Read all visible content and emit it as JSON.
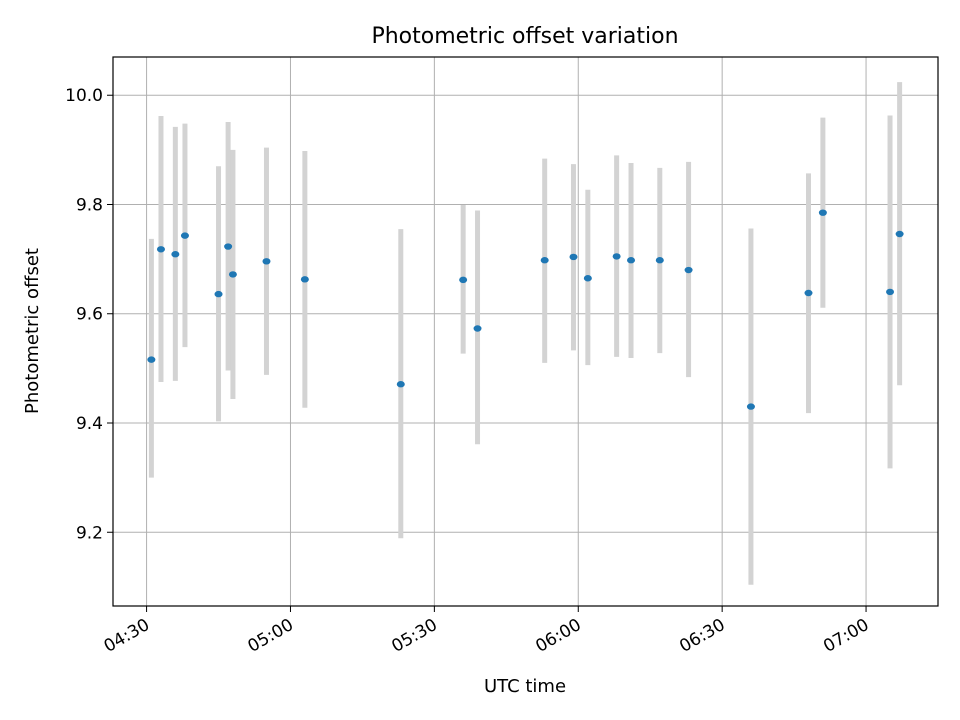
{
  "chart_data": {
    "type": "scatter",
    "title": "Photometric offset variation",
    "xlabel": "UTC time",
    "ylabel": "Photometric offset",
    "x_ticks": [
      "04:30",
      "05:00",
      "05:30",
      "06:00",
      "06:30",
      "07:00"
    ],
    "y_ticks": [
      "9.2",
      "9.4",
      "9.6",
      "9.8",
      "10.0"
    ],
    "xlim": [
      "04:23",
      "07:15"
    ],
    "ylim": [
      9.065,
      10.07
    ],
    "grid": true,
    "error_bars": true,
    "colors": {
      "points": "#1f77b4",
      "error_bars": "#d3d3d3",
      "grid": "#b0b0b0"
    },
    "series": [
      {
        "points": [
          {
            "x": "04:31",
            "y": 9.516,
            "err_low": 9.3,
            "err_high": 9.737
          },
          {
            "x": "04:33",
            "y": 9.718,
            "err_low": 9.475,
            "err_high": 9.962
          },
          {
            "x": "04:36",
            "y": 9.709,
            "err_low": 9.477,
            "err_high": 9.942
          },
          {
            "x": "04:38",
            "y": 9.743,
            "err_low": 9.539,
            "err_high": 9.948
          },
          {
            "x": "04:45",
            "y": 9.636,
            "err_low": 9.403,
            "err_high": 9.87
          },
          {
            "x": "04:47",
            "y": 9.723,
            "err_low": 9.496,
            "err_high": 9.951
          },
          {
            "x": "04:48",
            "y": 9.672,
            "err_low": 9.444,
            "err_high": 9.9
          },
          {
            "x": "04:55",
            "y": 9.696,
            "err_low": 9.488,
            "err_high": 9.904
          },
          {
            "x": "05:03",
            "y": 9.663,
            "err_low": 9.428,
            "err_high": 9.898
          },
          {
            "x": "05:23",
            "y": 9.471,
            "err_low": 9.189,
            "err_high": 9.755
          },
          {
            "x": "05:36",
            "y": 9.662,
            "err_low": 9.527,
            "err_high": 9.799
          },
          {
            "x": "05:39",
            "y": 9.573,
            "err_low": 9.361,
            "err_high": 9.789
          },
          {
            "x": "05:53",
            "y": 9.698,
            "err_low": 9.51,
            "err_high": 9.884
          },
          {
            "x": "05:59",
            "y": 9.704,
            "err_low": 9.533,
            "err_high": 9.874
          },
          {
            "x": "06:02",
            "y": 9.665,
            "err_low": 9.506,
            "err_high": 9.827
          },
          {
            "x": "06:08",
            "y": 9.705,
            "err_low": 9.521,
            "err_high": 9.89
          },
          {
            "x": "06:11",
            "y": 9.698,
            "err_low": 9.519,
            "err_high": 9.876
          },
          {
            "x": "06:17",
            "y": 9.698,
            "err_low": 9.528,
            "err_high": 9.867
          },
          {
            "x": "06:23",
            "y": 9.68,
            "err_low": 9.484,
            "err_high": 9.878
          },
          {
            "x": "06:36",
            "y": 9.43,
            "err_low": 9.104,
            "err_high": 9.756
          },
          {
            "x": "06:48",
            "y": 9.638,
            "err_low": 9.418,
            "err_high": 9.857
          },
          {
            "x": "06:51",
            "y": 9.785,
            "err_low": 9.611,
            "err_high": 9.959
          },
          {
            "x": "07:05",
            "y": 9.64,
            "err_low": 9.317,
            "err_high": 9.963
          },
          {
            "x": "07:07",
            "y": 9.746,
            "err_low": 9.469,
            "err_high": 10.024
          }
        ]
      }
    ]
  }
}
